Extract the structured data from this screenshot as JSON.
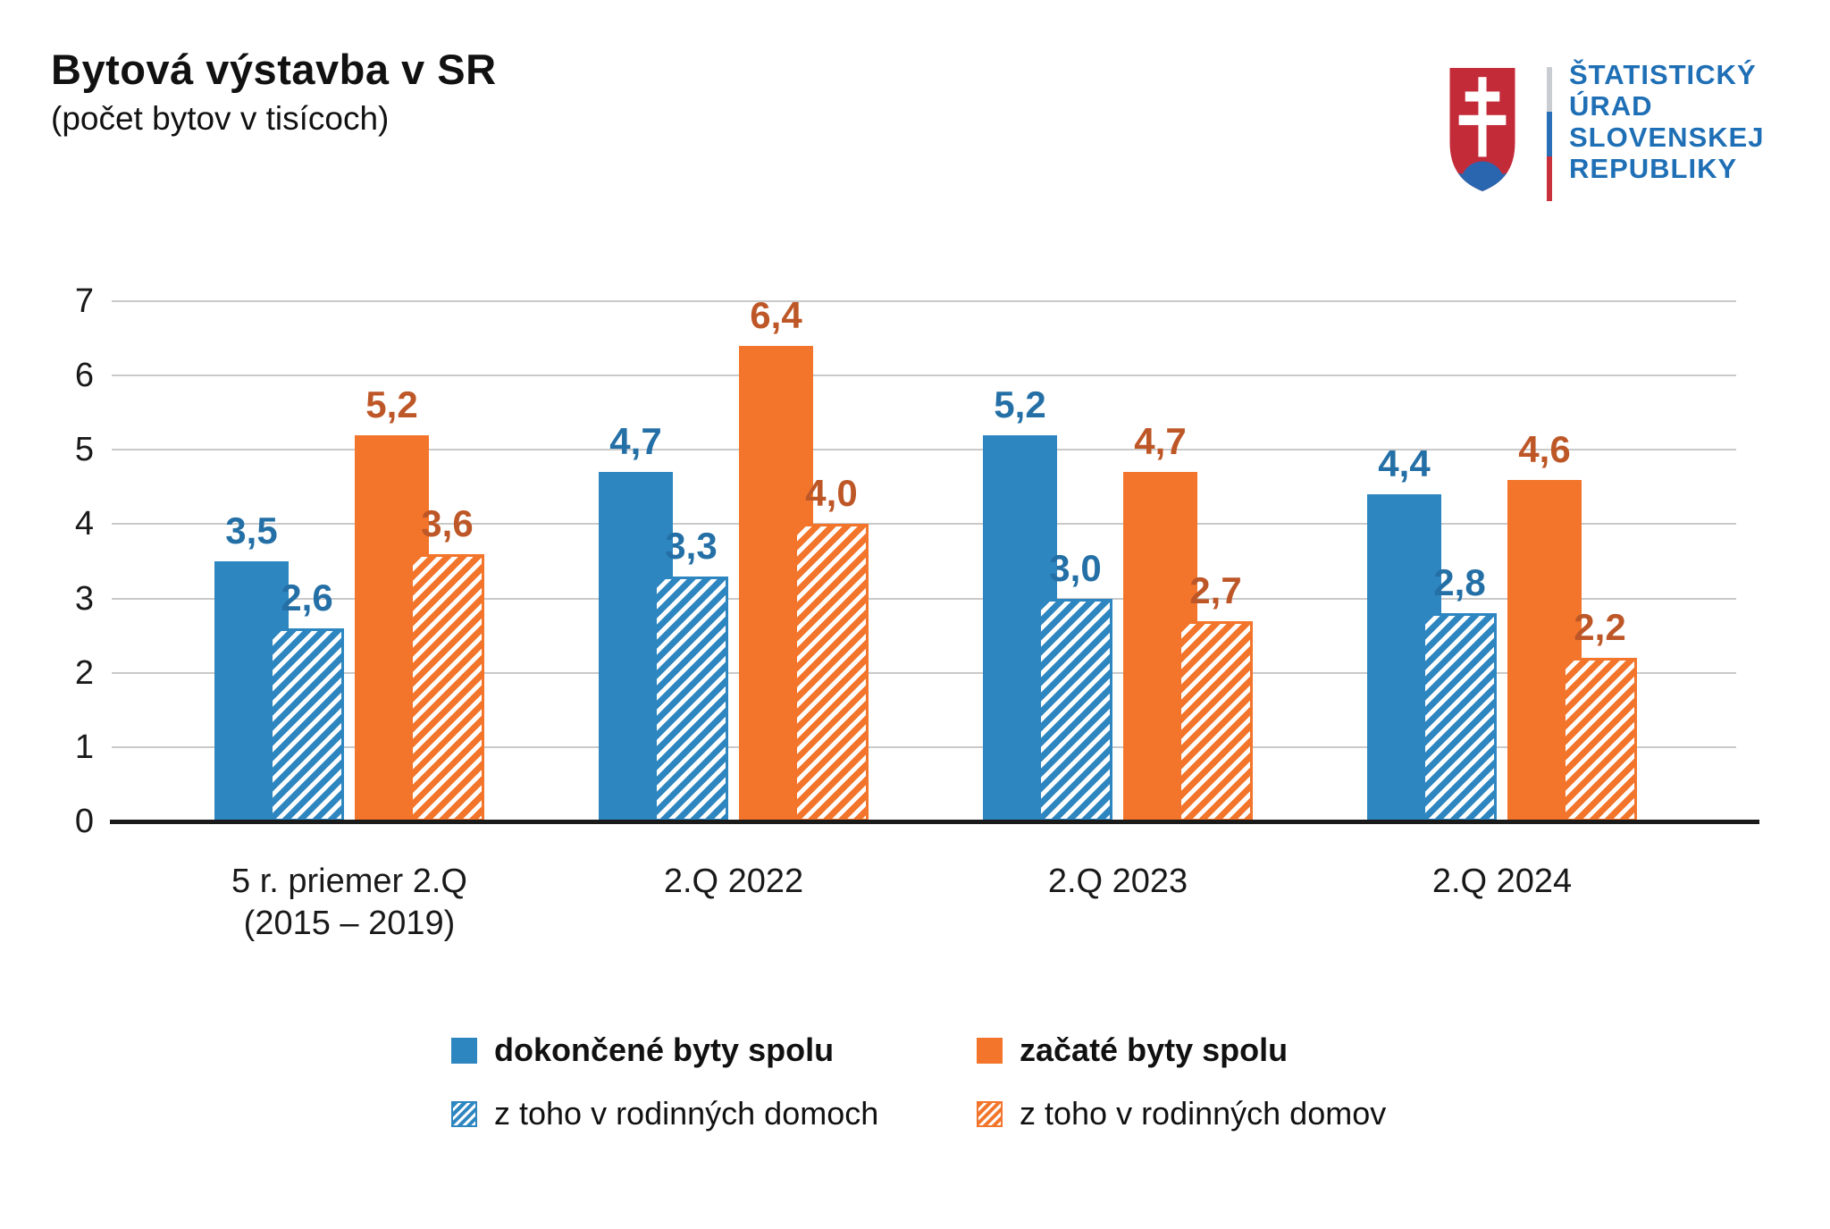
{
  "header": {
    "title": "Bytová výstavba v SR",
    "subtitle": "(počet bytov v tisícoch)"
  },
  "logo": {
    "lines": [
      "ŠTATISTICKÝ",
      "ÚRAD",
      "SLOVENSKEJ",
      "REPUBLIKY"
    ],
    "text_color": "#1E6FB5",
    "shield_red": "#C42B39",
    "shield_blue": "#2A66B0",
    "divider_colors": [
      "#C9CDD1",
      "#2A70B8",
      "#C8303C"
    ]
  },
  "chart_data": {
    "type": "bar",
    "title": "Bytová výstavba v SR",
    "subtitle": "(počet bytov v tisícoch)",
    "categories": [
      [
        "5 r. priemer 2.Q",
        "(2015 – 2019)"
      ],
      [
        "2.Q 2022"
      ],
      [
        "2.Q 2023"
      ],
      [
        "2.Q 2024"
      ]
    ],
    "series": [
      {
        "name": "dokončené byty spolu",
        "pattern": "solid",
        "color": "#2E86C1",
        "label_color": "#2470A6",
        "values": [
          3.5,
          4.7,
          5.2,
          4.4
        ],
        "value_labels": [
          "3,5",
          "4,7",
          "5,2",
          "4,4"
        ]
      },
      {
        "name": "z toho v rodinných domoch",
        "pattern": "hatched",
        "color": "#2E86C1",
        "label_color": "#2470A6",
        "values": [
          2.6,
          3.3,
          3.0,
          2.8
        ],
        "value_labels": [
          "2,6",
          "3,3",
          "3,0",
          "2,8"
        ]
      },
      {
        "name": "začaté byty spolu",
        "pattern": "solid",
        "color": "#F2752B",
        "label_color": "#BE5727",
        "values": [
          5.2,
          6.4,
          4.7,
          4.6
        ],
        "value_labels": [
          "5,2",
          "6,4",
          "4,7",
          "4,6"
        ]
      },
      {
        "name": "z toho v rodinných domov",
        "pattern": "hatched",
        "color": "#F2752B",
        "label_color": "#BE5727",
        "values": [
          3.6,
          4.0,
          2.7,
          2.2
        ],
        "value_labels": [
          "3,6",
          "4,0",
          "2,7",
          "2,2"
        ]
      }
    ],
    "ylim": [
      0,
      7
    ],
    "yticks": [
      0,
      1,
      2,
      3,
      4,
      5,
      6,
      7
    ],
    "grid": true,
    "legend_position": "bottom",
    "legend_columns": [
      [
        0,
        1
      ],
      [
        2,
        3
      ]
    ]
  }
}
